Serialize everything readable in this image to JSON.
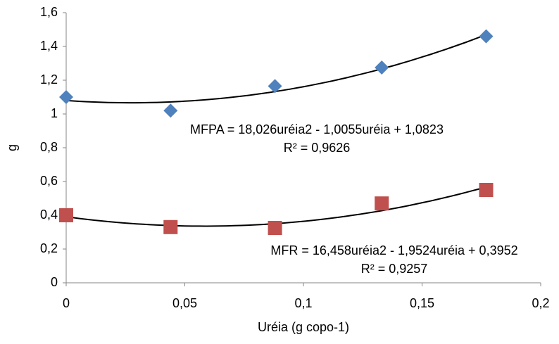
{
  "chart_data": {
    "type": "scatter",
    "x_label": "Uréia (g copo-1)",
    "y_label": "g",
    "x": [
      0,
      0.044,
      0.088,
      0.133,
      0.177
    ],
    "series": [
      {
        "name": "MFPA",
        "color": "#4f81bd",
        "marker": "diamond",
        "values": [
          1.1,
          1.02,
          1.165,
          1.275,
          1.46
        ],
        "trendline": "polynomial",
        "annotation": [
          "MFPA = 18,026uréia2 - 1,0055uréia + 1,0823",
          "R² = 0,9626"
        ]
      },
      {
        "name": "MFR",
        "color": "#c0504d",
        "marker": "square",
        "values": [
          0.4,
          0.33,
          0.325,
          0.47,
          0.55
        ],
        "trendline": "polynomial",
        "annotation": [
          "MFR = 16,458uréia2 - 1,9524uréia + 0,3952",
          "R² = 0,9257"
        ]
      }
    ],
    "xlim": [
      0,
      0.2
    ],
    "xticks": [
      0,
      {
        "value": 0.05,
        "label": "0,05"
      },
      {
        "value": 0.1,
        "label": "0,1"
      },
      {
        "value": 0.15,
        "label": "0,15"
      },
      {
        "value": 0.2,
        "label": "0,2"
      }
    ],
    "ylim": [
      0,
      1.6
    ],
    "yticks": [
      0,
      {
        "value": 0.2,
        "label": "0,2"
      },
      {
        "value": 0.4,
        "label": "0,4"
      },
      {
        "value": 0.6,
        "label": "0,6"
      },
      {
        "value": 0.8,
        "label": "0,8"
      },
      1,
      {
        "value": 1.2,
        "label": "1,2"
      },
      {
        "value": 1.4,
        "label": "1,4"
      },
      {
        "value": 1.6,
        "label": "1,6"
      }
    ],
    "grid": false
  }
}
